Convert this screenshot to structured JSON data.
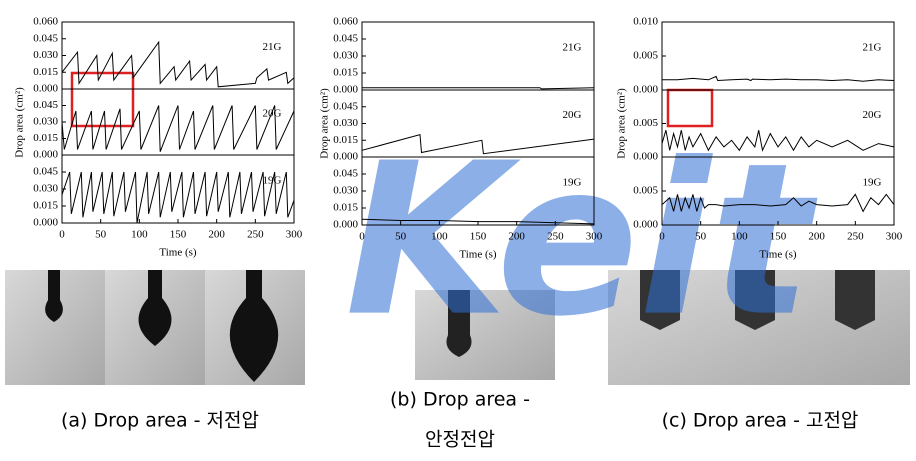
{
  "watermark": "Keit",
  "chart_data": [
    {
      "type": "line",
      "ylabel": "Drop area (cm²)",
      "xlabel": "Time (s)",
      "caption": [
        "(a) Drop area - 저전압"
      ],
      "xlim": [
        0,
        300
      ],
      "xticks": [
        0,
        50,
        100,
        150,
        200,
        250,
        300
      ],
      "color": "#000000",
      "subplots": [
        {
          "label": "21G",
          "ylim": [
            0,
            0.06
          ],
          "yticks": [
            {
              "value": 0,
              "label": "0.000"
            },
            {
              "value": 0.015,
              "label": "0.015"
            },
            {
              "value": 0.03,
              "label": "0.030"
            },
            {
              "value": 0.045,
              "label": "0.045"
            },
            {
              "value": 0.06,
              "label": "0.060"
            }
          ],
          "x": [
            0,
            20,
            22,
            45,
            47,
            65,
            67,
            90,
            92,
            125,
            127,
            145,
            147,
            165,
            167,
            185,
            187,
            200,
            202,
            250,
            252,
            265,
            267,
            290,
            292,
            300
          ],
          "values": [
            0.015,
            0.033,
            0.005,
            0.03,
            0.008,
            0.032,
            0.008,
            0.03,
            0.01,
            0.042,
            0.005,
            0.02,
            0.008,
            0.025,
            0.008,
            0.022,
            0.008,
            0.02,
            0.002,
            0.005,
            0.01,
            0.018,
            0.008,
            0.015,
            0.005,
            0.01
          ]
        },
        {
          "label": "20G",
          "ylim": [
            0,
            0.06
          ],
          "yticks": [
            {
              "value": 0,
              "label": "0.000"
            },
            {
              "value": 0.015,
              "label": "0.015"
            },
            {
              "value": 0.03,
              "label": "0.030"
            },
            {
              "value": 0.045,
              "label": "0.045"
            }
          ],
          "x": [
            0,
            3,
            18,
            20,
            38,
            40,
            55,
            57,
            75,
            77,
            100,
            102,
            125,
            127,
            150,
            152,
            170,
            172,
            195,
            197,
            220,
            222,
            250,
            252,
            275,
            277,
            300
          ],
          "values": [
            0.03,
            0.005,
            0.04,
            0.005,
            0.04,
            0.005,
            0.04,
            0.005,
            0.042,
            0.005,
            0.04,
            0.005,
            0.045,
            0.003,
            0.045,
            0.005,
            0.04,
            0.005,
            0.045,
            0.005,
            0.045,
            0.005,
            0.045,
            0.005,
            0.045,
            0.005,
            0.04
          ]
        },
        {
          "label": "19G",
          "ylim": [
            0,
            0.06
          ],
          "yticks": [
            {
              "value": 0,
              "label": "0.000"
            },
            {
              "value": 0.015,
              "label": "0.015"
            },
            {
              "value": 0.03,
              "label": "0.030"
            },
            {
              "value": 0.045,
              "label": "0.045"
            }
          ],
          "x": [
            0,
            10,
            12,
            25,
            27,
            38,
            40,
            52,
            54,
            65,
            67,
            80,
            82,
            95,
            97,
            110,
            112,
            125,
            127,
            140,
            142,
            155,
            157,
            170,
            172,
            185,
            187,
            200,
            202,
            215,
            217,
            230,
            232,
            245,
            247,
            260,
            262,
            275,
            277,
            290,
            292,
            300
          ],
          "values": [
            0.025,
            0.045,
            0.008,
            0.045,
            0.005,
            0.045,
            0.01,
            0.045,
            0.008,
            0.045,
            0.006,
            0.045,
            0.01,
            0.045,
            0,
            0.045,
            0.008,
            0.045,
            0.005,
            0.045,
            0.01,
            0.045,
            0.005,
            0.045,
            0.008,
            0.045,
            0.006,
            0.045,
            0.01,
            0.045,
            0.005,
            0.045,
            0.008,
            0.045,
            0.01,
            0.045,
            0.006,
            0.045,
            0.008,
            0.045,
            0.005,
            0.02
          ]
        }
      ]
    },
    {
      "type": "line",
      "ylabel": "Drop area (cm²)",
      "xlabel": "Time (s)",
      "caption": [
        "(b) Drop area -",
        "안정전압"
      ],
      "xlim": [
        0,
        300
      ],
      "xticks": [
        0,
        50,
        100,
        150,
        200,
        250,
        300
      ],
      "color": "#000000",
      "subplots": [
        {
          "label": "21G",
          "ylim": [
            0,
            0.06
          ],
          "yticks": [
            {
              "value": 0,
              "label": "0.000"
            },
            {
              "value": 0.015,
              "label": "0.015"
            },
            {
              "value": 0.03,
              "label": "0.030"
            },
            {
              "value": 0.045,
              "label": "0.045"
            },
            {
              "value": 0.06,
              "label": "0.060"
            }
          ],
          "x": [
            0,
            100,
            200,
            230,
            232,
            300
          ],
          "values": [
            0.002,
            0.002,
            0.002,
            0.002,
            0.001,
            0.002
          ]
        },
        {
          "label": "20G",
          "ylim": [
            0,
            0.06
          ],
          "yticks": [
            {
              "value": 0,
              "label": "0.000"
            },
            {
              "value": 0.015,
              "label": "0.015"
            },
            {
              "value": 0.03,
              "label": "0.030"
            },
            {
              "value": 0.045,
              "label": "0.045"
            }
          ],
          "x": [
            0,
            75,
            77,
            155,
            157,
            300
          ],
          "values": [
            0.006,
            0.02,
            0.004,
            0.015,
            0.003,
            0.016
          ]
        },
        {
          "label": "19G",
          "ylim": [
            0,
            0.06
          ],
          "yticks": [
            {
              "value": 0,
              "label": "0.000"
            },
            {
              "value": 0.015,
              "label": "0.015"
            },
            {
              "value": 0.03,
              "label": "0.030"
            },
            {
              "value": 0.045,
              "label": "0.045"
            }
          ],
          "x": [
            0,
            50,
            100,
            150,
            200,
            250,
            300
          ],
          "values": [
            0.005,
            0.004,
            0.004,
            0.003,
            0.003,
            0.002,
            0.001
          ]
        }
      ]
    },
    {
      "type": "line",
      "ylabel": "Drop area (cm²)",
      "xlabel": "Time (s)",
      "caption": [
        "(c) Drop area - 고전압"
      ],
      "xlim": [
        0,
        300
      ],
      "xticks": [
        0,
        50,
        100,
        150,
        200,
        250,
        300
      ],
      "color": "#000000",
      "subplots": [
        {
          "label": "21G",
          "ylim": [
            0,
            0.01
          ],
          "yticks": [
            {
              "value": 0,
              "label": "0.000"
            },
            {
              "value": 0.005,
              "label": "0.005"
            },
            {
              "value": 0.01,
              "label": "0.010"
            }
          ],
          "x": [
            0,
            20,
            40,
            60,
            70,
            72,
            90,
            110,
            115,
            117,
            140,
            160,
            180,
            200,
            220,
            240,
            260,
            280,
            300
          ],
          "values": [
            0.0015,
            0.0015,
            0.0017,
            0.0015,
            0.002,
            0.0014,
            0.0015,
            0.0016,
            0.0014,
            0.0016,
            0.0015,
            0.0016,
            0.0015,
            0.0015,
            0.0014,
            0.0015,
            0.0013,
            0.0015,
            0.0014
          ]
        },
        {
          "label": "20G",
          "ylim": [
            0,
            0.01
          ],
          "yticks": [
            {
              "value": 0,
              "label": "0.000"
            },
            {
              "value": 0.005,
              "label": "0.005"
            }
          ],
          "x": [
            0,
            5,
            10,
            15,
            20,
            25,
            30,
            35,
            40,
            50,
            60,
            70,
            80,
            90,
            100,
            110,
            120,
            125,
            130,
            140,
            150,
            160,
            170,
            180,
            190,
            200,
            220,
            240,
            260,
            280,
            300
          ],
          "values": [
            0.002,
            0.004,
            0.001,
            0.0035,
            0.0015,
            0.004,
            0.001,
            0.003,
            0.0015,
            0.0035,
            0.001,
            0.003,
            0.0015,
            0.0025,
            0.001,
            0.003,
            0.0015,
            0.004,
            0.001,
            0.0035,
            0.0015,
            0.003,
            0.001,
            0.003,
            0.0015,
            0.0025,
            0.0015,
            0.0025,
            0.001,
            0.002,
            0.0015
          ]
        },
        {
          "label": "19G",
          "ylim": [
            0,
            0.01
          ],
          "yticks": [
            {
              "value": 0,
              "label": "0.000"
            },
            {
              "value": 0.005,
              "label": "0.005"
            }
          ],
          "x": [
            0,
            10,
            15,
            20,
            25,
            30,
            35,
            40,
            45,
            50,
            55,
            60,
            70,
            80,
            100,
            120,
            140,
            160,
            170,
            180,
            190,
            200,
            220,
            240,
            250,
            260,
            270,
            280,
            290,
            300
          ],
          "values": [
            0.003,
            0.004,
            0.002,
            0.0045,
            0.002,
            0.004,
            0.0025,
            0.0045,
            0.002,
            0.004,
            0.0025,
            0.003,
            0.003,
            0.0028,
            0.003,
            0.003,
            0.0028,
            0.003,
            0.004,
            0.0028,
            0.0035,
            0.003,
            0.0028,
            0.003,
            0.0045,
            0.002,
            0.004,
            0.003,
            0.0045,
            0.003
          ]
        }
      ]
    }
  ]
}
